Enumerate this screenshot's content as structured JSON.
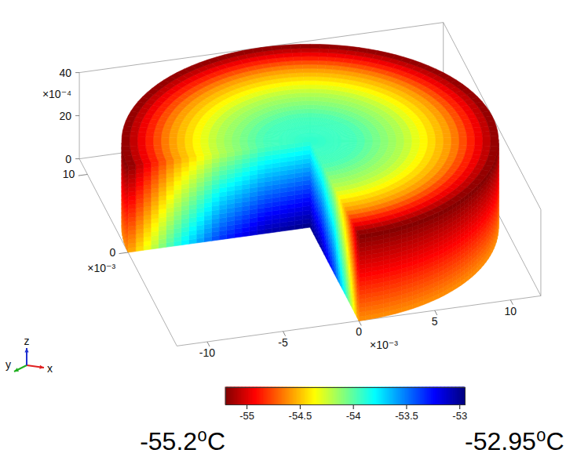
{
  "chart_data": {
    "type": "surface3d",
    "xlim": [
      -12,
      12
    ],
    "xticks": [
      -10,
      -5,
      0,
      5,
      10
    ],
    "xlabel": "×10⁻³",
    "ylim": [
      -12,
      12
    ],
    "yticks": [
      0,
      10
    ],
    "ylabel": "×10⁻³",
    "zlim": [
      0,
      40
    ],
    "zticks": [
      0,
      20,
      40
    ],
    "zlabel": "×10⁻⁴",
    "radius": 12,
    "height": 40,
    "removed_sector": [
      180,
      270
    ],
    "temperature": {
      "r": [
        0,
        3,
        6,
        9,
        12
      ],
      "z": [
        0,
        20,
        40
      ],
      "values": [
        [
          -52.95,
          -53.05,
          -53.35,
          -53.9,
          -54.6
        ],
        [
          -53.4,
          -53.5,
          -53.75,
          -54.25,
          -54.9
        ],
        [
          -53.9,
          -53.95,
          -54.2,
          -54.6,
          -55.2
        ]
      ]
    },
    "colorbar": {
      "range": [
        -55.2,
        -52.95
      ],
      "ticks": [
        -55,
        -54.5,
        -54,
        -53.5,
        -53
      ],
      "range_labels": [
        "-55.2⁰C",
        "-52.95⁰C"
      ]
    },
    "triad": [
      "x",
      "y",
      "z"
    ]
  }
}
